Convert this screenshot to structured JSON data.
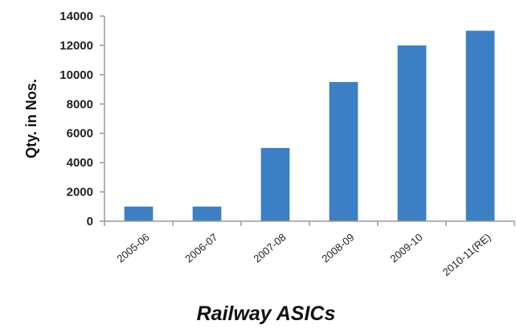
{
  "chart_data": {
    "type": "bar",
    "title": "Railway ASICs",
    "xlabel": "",
    "ylabel": "Qty. in Nos.",
    "categories": [
      "2005-06",
      "2006-07",
      "2007-08",
      "2008-09",
      "2009-10",
      "2010-11(RE)"
    ],
    "series": [
      {
        "values": [
          1000,
          1000,
          5000,
          9500,
          12000,
          13000
        ]
      }
    ],
    "ylim": [
      0,
      14000
    ],
    "yticks": [
      0,
      2000,
      4000,
      6000,
      8000,
      10000,
      12000,
      14000
    ],
    "grid": false,
    "legend": "none",
    "colors": {
      "bar": "#3d7fc4",
      "axis": "#9a9a9a"
    }
  }
}
